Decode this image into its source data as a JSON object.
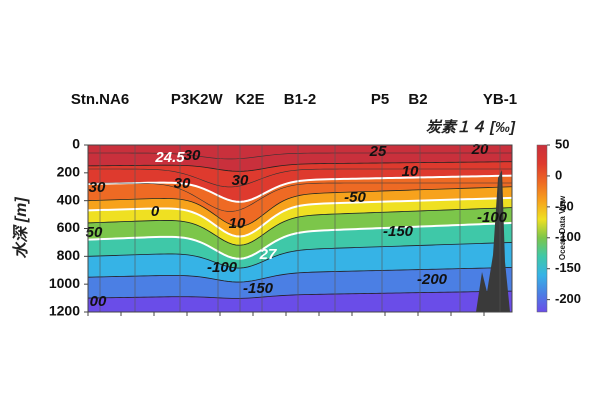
{
  "chart_data": {
    "type": "section",
    "title": "炭素１４ [‰]",
    "y_label": "水深 [m]",
    "watermark": "Ocean Data View",
    "stations": [
      "Stn.NA6",
      "P3",
      "K2W",
      "K2E",
      "B1-2",
      "P5",
      "B2",
      "YB-1"
    ],
    "ylim": [
      0,
      1200
    ],
    "y_inverted": true,
    "yticks": [
      0,
      200,
      400,
      600,
      800,
      1000,
      1200
    ],
    "clim": [
      -220,
      50
    ],
    "cticks": [
      50,
      0,
      -50,
      -100,
      -150,
      -200
    ],
    "colors": [
      "#c9303c",
      "#de3a2e",
      "#ee6a24",
      "#f7a21c",
      "#efe022",
      "#7cc64a",
      "#3fc8a8",
      "#36b3e6",
      "#4b7fe4",
      "#6a4de8"
    ],
    "contour_labels": [
      "24.5",
      "30",
      "25",
      "20",
      "30",
      "30",
      "30",
      "10",
      "0",
      "-50",
      "10",
      "-100",
      "50",
      "-150",
      "27",
      "-100",
      "-150",
      "-200",
      "00"
    ]
  }
}
